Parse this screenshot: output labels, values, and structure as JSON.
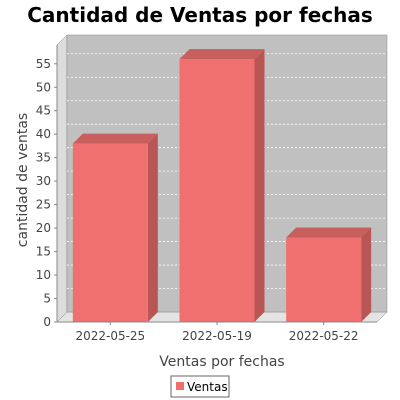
{
  "chart_data": {
    "type": "bar",
    "title": "Cantidad de Ventas por fechas",
    "xlabel": "Ventas por fechas",
    "ylabel": "cantidad de ventas",
    "categories": [
      "2022-05-25",
      "2022-05-19",
      "2022-05-22"
    ],
    "series": [
      {
        "name": "Ventas",
        "values": [
          38,
          56,
          18
        ]
      }
    ],
    "ylim": [
      0,
      59
    ],
    "yticks": [
      0,
      5,
      10,
      15,
      20,
      25,
      30,
      35,
      40,
      45,
      50,
      55
    ],
    "grid": true,
    "legend": "bottom-center",
    "colors": {
      "bar_front": "#f07070",
      "bar_side": "#b85555",
      "bar_top": "#c75f5f",
      "plot_bg": "#c0c0c0",
      "gridline": "#ffffff"
    }
  }
}
